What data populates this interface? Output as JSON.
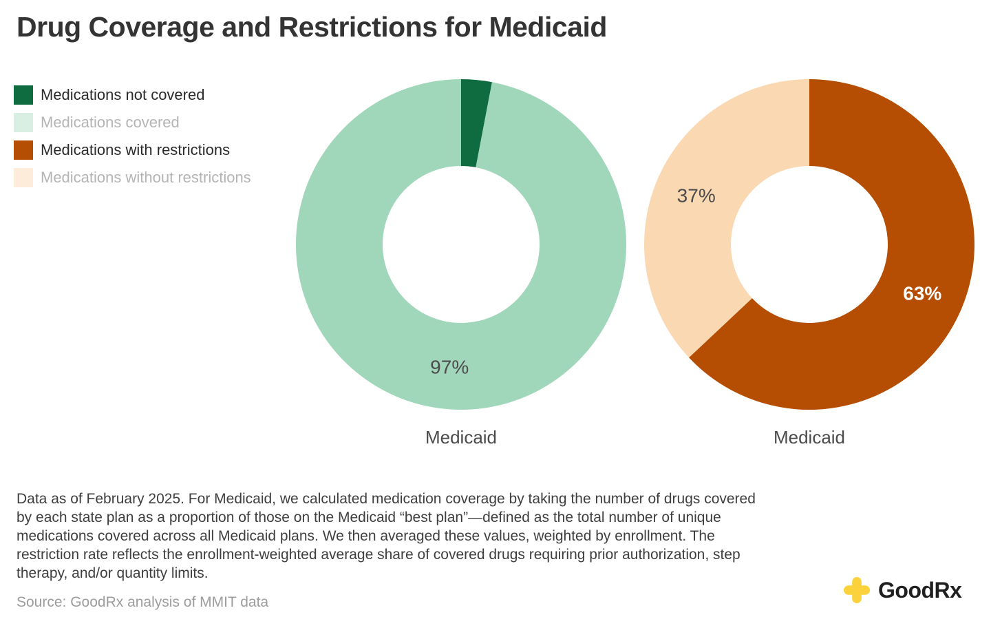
{
  "title": "Drug Coverage and Restrictions for Medicaid",
  "colors": {
    "dark_green": "#0f6c40",
    "light_green": "#a0d6ba",
    "dark_orange": "#b54e02",
    "light_peach": "#fad8b2",
    "legend_text_active": "#2b2b2b",
    "legend_text_dimmed": "#b4b4b4",
    "value_label_dark": "#4c4c4c",
    "value_label_light": "#ffffff"
  },
  "legend": {
    "items": [
      {
        "label": "Medications not covered",
        "swatch": "#0f6c40",
        "dimmed": false
      },
      {
        "label": "Medications covered",
        "swatch": "#d9efe3",
        "dimmed": true
      },
      {
        "label": "Medications with restrictions",
        "swatch": "#b54e02",
        "dimmed": false
      },
      {
        "label": "Medications without restrictions",
        "swatch": "#fdecd9",
        "dimmed": true
      }
    ]
  },
  "chart_data": [
    {
      "type": "pie",
      "subtype": "donut",
      "title": "",
      "category_label": "Medicaid",
      "start_angle_deg": 0,
      "direction": "clockwise",
      "slices": [
        {
          "name": "Medications not covered",
          "value": 3,
          "color": "#0f6c40",
          "label": "3%",
          "label_visible": false,
          "label_color": "#4c4c4c",
          "label_bold": false
        },
        {
          "name": "Medications covered",
          "value": 97,
          "color": "#a0d6ba",
          "label": "97%",
          "label_visible": true,
          "label_color": "#4c4c4c",
          "label_bold": false
        }
      ]
    },
    {
      "type": "pie",
      "subtype": "donut",
      "title": "",
      "category_label": "Medicaid",
      "start_angle_deg": 0,
      "direction": "clockwise",
      "slices": [
        {
          "name": "Medications with restrictions",
          "value": 63,
          "color": "#b54e02",
          "label": "63%",
          "label_visible": true,
          "label_color": "#ffffff",
          "label_bold": true
        },
        {
          "name": "Medications without restrictions",
          "value": 37,
          "color": "#fad8b2",
          "label": "37%",
          "label_visible": true,
          "label_color": "#4c4c4c",
          "label_bold": false
        }
      ]
    }
  ],
  "footnote": "Data as of February 2025. For Medicaid, we calculated medication coverage by taking the number of drugs covered by each state plan as a proportion of those on the Medicaid “best plan”—defined as the total number of unique medications covered across all Medicaid plans. We then averaged these values, weighted by enrollment. The restriction rate reflects the enrollment-weighted average share of covered drugs requiring prior authorization, step therapy, and/or quantity limits.",
  "source": "Source: GoodRx analysis of MMIT data",
  "logo": {
    "name": "GoodRx",
    "text_bold": "Good",
    "text_regular": "Rx",
    "cross_color": "#fbd23c"
  }
}
